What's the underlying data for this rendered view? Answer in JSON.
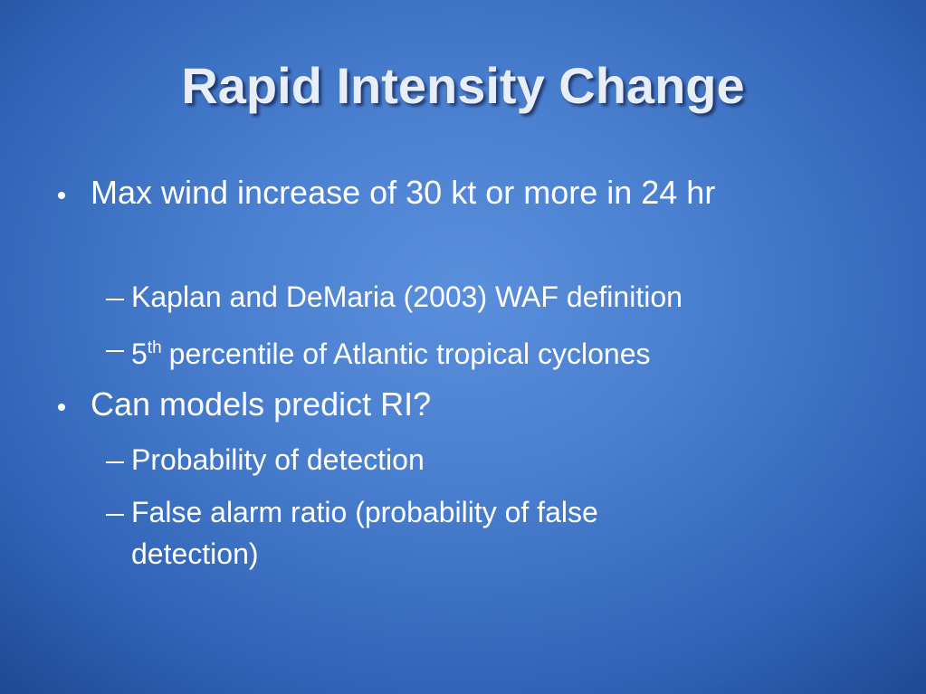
{
  "slide": {
    "title": "Rapid Intensity Change",
    "bullets": [
      {
        "text": "Max wind increase of 30 kt or more in 24 hr",
        "subs": [
          {
            "text": "Kaplan and DeMaria (2003) WAF definition"
          },
          {
            "parts": [
              "5",
              "th",
              "percentile of Atlantic tropical cyclones"
            ]
          }
        ]
      },
      {
        "text": "Can models predict RI?",
        "subs": [
          {
            "text": "Probability of detection"
          },
          {
            "text": "False alarm ratio (probability of false detection)"
          }
        ]
      }
    ]
  }
}
